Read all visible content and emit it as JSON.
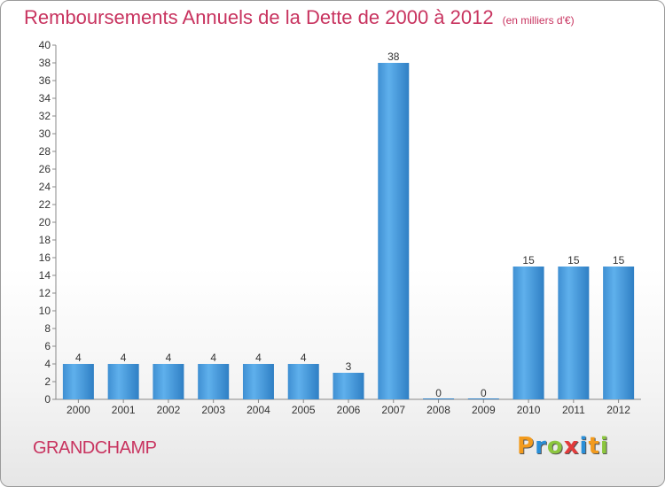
{
  "title": "Remboursements Annuels de la Dette de 2000 à 2012",
  "subtitle": "(en milliers d'€)",
  "town": "GRANDCHAMP",
  "logo": {
    "letters": [
      "P",
      "r",
      "o",
      "x",
      "i",
      "t",
      "i"
    ],
    "colors": [
      "#f39b1d",
      "#2a8fd8",
      "#8cc63f",
      "#e23b3b",
      "#2a8fd8",
      "#f39b1d",
      "#8cc63f"
    ]
  },
  "colors": {
    "bar_light": "#5aa9e6",
    "bar_dark": "#1f6fb3",
    "title": "#c8335f"
  },
  "chart_data": {
    "type": "bar",
    "categories": [
      "2000",
      "2001",
      "2002",
      "2003",
      "2004",
      "2005",
      "2006",
      "2007",
      "2008",
      "2009",
      "2010",
      "2011",
      "2012"
    ],
    "values": [
      4,
      4,
      4,
      4,
      4,
      4,
      3,
      38,
      0,
      0,
      15,
      15,
      15
    ],
    "value_labels": [
      "4",
      "4",
      "4",
      "4",
      "4",
      "4",
      "3",
      "38",
      "0",
      "0",
      "15",
      "15",
      "15"
    ],
    "ylim": [
      0,
      40
    ],
    "yticks": [
      "0",
      "2",
      "4",
      "6",
      "8",
      "10",
      "12",
      "14",
      "16",
      "18",
      "20",
      "22",
      "24",
      "26",
      "28",
      "30",
      "32",
      "34",
      "36",
      "38",
      "40"
    ],
    "grid": false,
    "xlabel": "",
    "ylabel": ""
  }
}
